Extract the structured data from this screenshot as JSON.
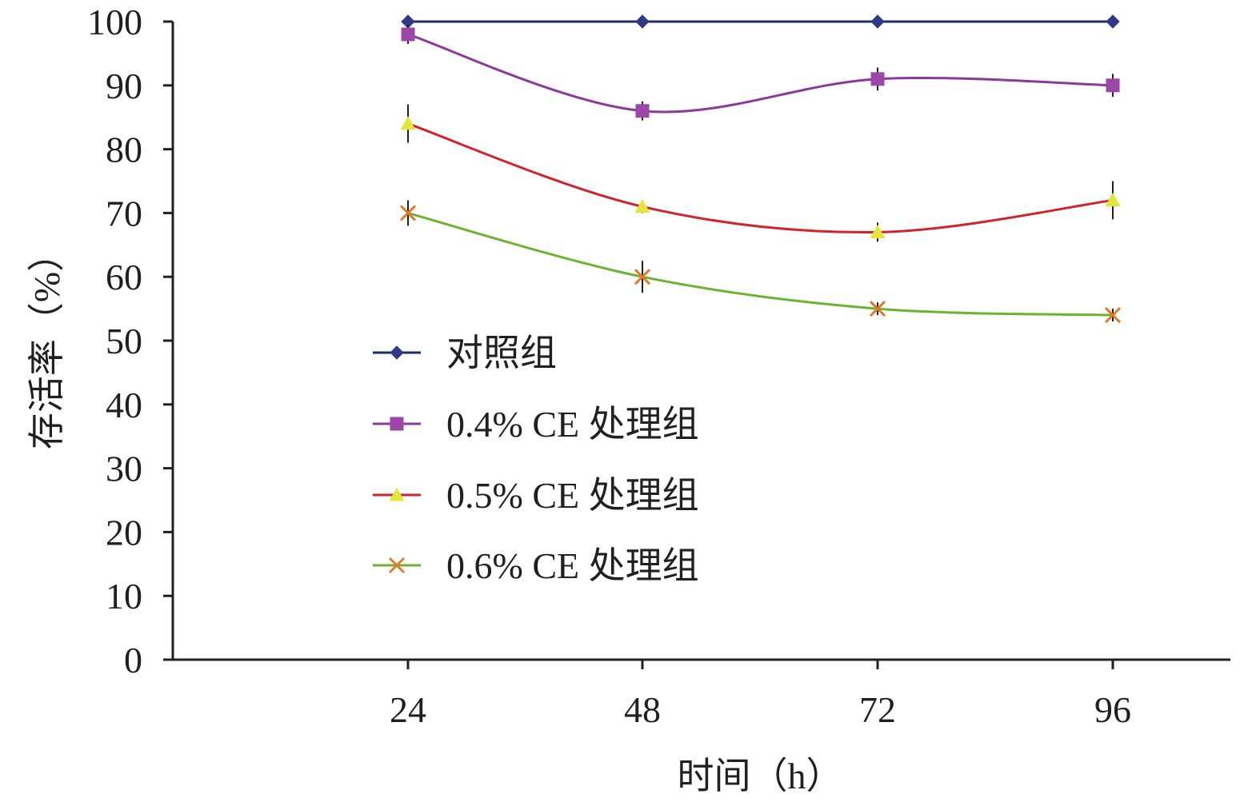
{
  "chart_data": {
    "type": "line",
    "xlabel": "时间（h）",
    "ylabel": "存活率（%）",
    "x_categories": [
      "24",
      "48",
      "72",
      "96"
    ],
    "ylim": [
      0,
      100
    ],
    "y_ticks": [
      "0",
      "10",
      "20",
      "30",
      "40",
      "50",
      "60",
      "70",
      "80",
      "90",
      "100"
    ],
    "grid": false,
    "legend_position": "center-left",
    "series": [
      {
        "name": "对照组",
        "values": [
          100,
          100,
          100,
          100
        ],
        "errors": [
          0,
          0,
          0,
          0
        ],
        "line_color": "#1f2a6b",
        "marker": "diamond",
        "marker_color": "#2e3a87"
      },
      {
        "name": "0.4% CE 处理组",
        "values": [
          98,
          86,
          91,
          90
        ],
        "errors": [
          1.5,
          1.5,
          1.8,
          1.8
        ],
        "line_color": "#8b3a9a",
        "marker": "square",
        "marker_color": "#9b46a8"
      },
      {
        "name": "0.5% CE 处理组",
        "values": [
          84,
          71,
          67,
          72
        ],
        "errors": [
          3,
          1,
          1.5,
          3
        ],
        "line_color": "#d2232a",
        "marker": "triangle",
        "marker_color": "#e4e63a"
      },
      {
        "name": "0.6% CE 处理组",
        "values": [
          70,
          60,
          55,
          54
        ],
        "errors": [
          2,
          2.5,
          1,
          1
        ],
        "line_color": "#6ab42e",
        "marker": "x",
        "marker_color": "#e07a2a"
      }
    ]
  }
}
